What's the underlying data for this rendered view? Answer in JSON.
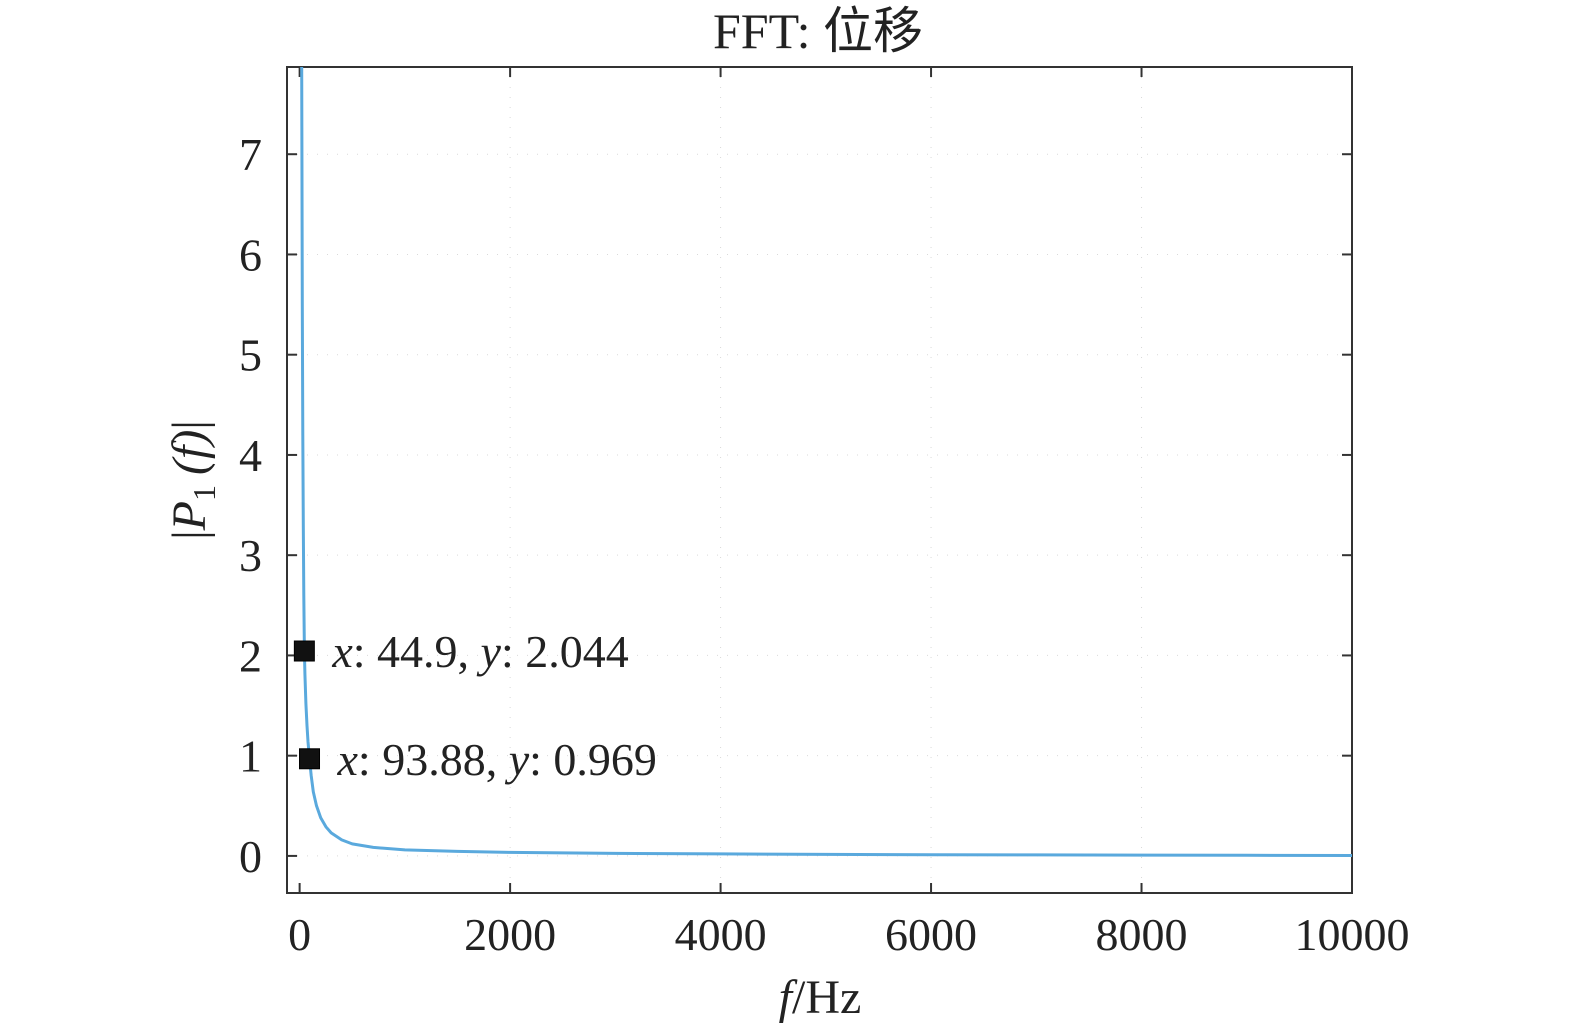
{
  "chart_data": {
    "type": "line",
    "title": "FFT: 位移",
    "xlabel": {
      "var": "f",
      "unit": "/Hz"
    },
    "ylabel": {
      "bar": "|",
      "var": "P",
      "sub": "1",
      "arg": "(f)"
    },
    "xlim": [
      -120,
      10000
    ],
    "ylim": [
      -0.37,
      7.87
    ],
    "x_ticks": [
      0,
      2000,
      4000,
      6000,
      8000,
      10000
    ],
    "x_tick_labels": [
      "0",
      "2000",
      "4000",
      "6000",
      "8000",
      "10000"
    ],
    "y_ticks": [
      0,
      1,
      2,
      3,
      4,
      5,
      6,
      7
    ],
    "y_tick_labels": [
      "0",
      "1",
      "2",
      "3",
      "4",
      "5",
      "6",
      "7"
    ],
    "grid": "faint dotted",
    "series": [
      {
        "color": "#5aa9dd",
        "x": [
          20,
          25,
          30,
          35,
          40,
          44.9,
          50,
          60,
          70,
          80,
          93.88,
          110,
          130,
          160,
          200,
          250,
          300,
          400,
          500,
          700,
          1000,
          1500,
          2000,
          3000,
          4000,
          5000,
          6000,
          7000,
          8000,
          9000,
          10000
        ],
        "y": [
          7.87,
          5.5,
          4.2,
          3.3,
          2.6,
          2.044,
          1.82,
          1.52,
          1.3,
          1.14,
          0.969,
          0.8,
          0.64,
          0.5,
          0.38,
          0.29,
          0.23,
          0.16,
          0.12,
          0.085,
          0.06,
          0.045,
          0.035,
          0.025,
          0.02,
          0.015,
          0.012,
          0.01,
          0.008,
          0.006,
          0.004
        ]
      }
    ],
    "annotations": [
      {
        "x": 44.9,
        "y": 2.044,
        "x_label": "x",
        "x_value": ": 44.9,",
        "y_label": "y",
        "y_value": ": 2.044"
      },
      {
        "x": 93.88,
        "y": 0.969,
        "x_label": "x",
        "x_value": ": 93.88,",
        "y_label": "y",
        "y_value": ": 0.969"
      }
    ]
  }
}
